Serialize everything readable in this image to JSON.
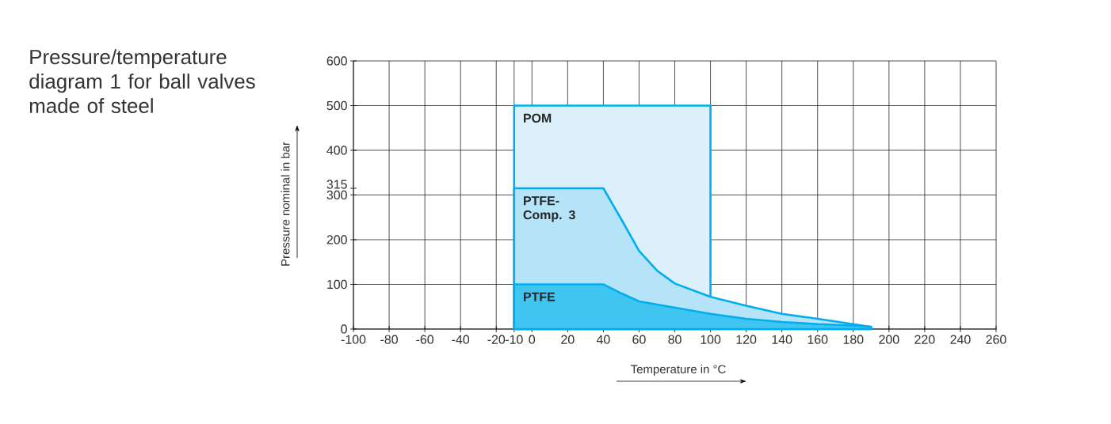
{
  "chart_data": {
    "type": "area",
    "title": "Pressure/temperature diagram 1 for ball valves made of steel",
    "xlabel": "Temperature in °C",
    "ylabel": "Pressure nominal in bar",
    "xlim": [
      -100,
      260
    ],
    "ylim": [
      0,
      600
    ],
    "xticks": [
      -100,
      -80,
      -60,
      -40,
      -20,
      -10,
      0,
      20,
      40,
      60,
      80,
      100,
      120,
      140,
      160,
      180,
      200,
      220,
      240,
      260
    ],
    "yticks": [
      0,
      100,
      200,
      300,
      {
        "value": 315,
        "label": "315"
      },
      400,
      500,
      600
    ],
    "grid": true,
    "series": [
      {
        "name": "POM",
        "color": "#dcf0fb",
        "x": [
          -10,
          -10,
          100,
          100
        ],
        "values": [
          0,
          500,
          500,
          0
        ]
      },
      {
        "name": "PTFE-Comp. 3",
        "color": "#b5e3f8",
        "x": [
          -10,
          -10,
          40,
          50,
          60,
          70,
          80,
          100,
          120,
          140,
          160,
          180,
          190
        ],
        "values": [
          0,
          315,
          315,
          246,
          175,
          131,
          102,
          72,
          52,
          34,
          23,
          11,
          5
        ]
      },
      {
        "name": "PTFE",
        "color": "#40c5f1",
        "x": [
          -10,
          -10,
          40,
          50,
          60,
          80,
          100,
          120,
          140,
          160,
          180,
          190
        ],
        "values": [
          0,
          100,
          100,
          80,
          62,
          48,
          34,
          23,
          16,
          11,
          8,
          5
        ]
      }
    ]
  }
}
